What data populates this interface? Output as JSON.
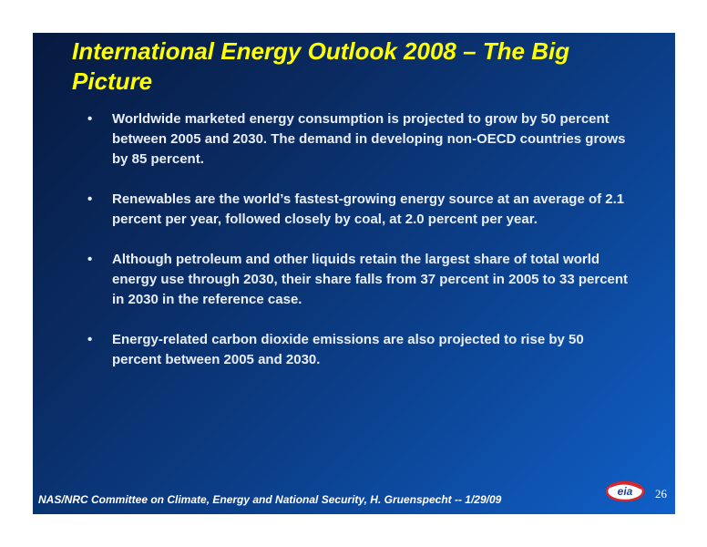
{
  "slide": {
    "title": "International Energy Outlook 2008 – The Big Picture",
    "bullets": [
      "Worldwide marketed energy consumption is projected to grow by 50 percent between 2005 and 2030. The demand in developing non-OECD  countries grows by 85 percent.",
      "Renewables are the world’s fastest-growing energy source at an average of 2.1 percent per year, followed closely by coal, at 2.0 percent per year.",
      "Although petroleum and other liquids retain the largest share of total world energy use through 2030, their share falls from 37 percent in 2005 to 33 percent in 2030 in the reference case.",
      "Energy-related carbon dioxide emissions are also projected to rise by 50 percent between 2005 and 2030."
    ],
    "bullet_marker": "•"
  },
  "footer": {
    "text": "NAS/NRC Committee on Climate, Energy and National Security, H. Gruenspecht -- 1/29/09",
    "page_number": "26",
    "logo": {
      "icon": "eia-logo",
      "text": "eia",
      "colors": {
        "ring": "#d9262a",
        "text": "#1a3f9a",
        "fill": "#ffffff"
      }
    }
  }
}
